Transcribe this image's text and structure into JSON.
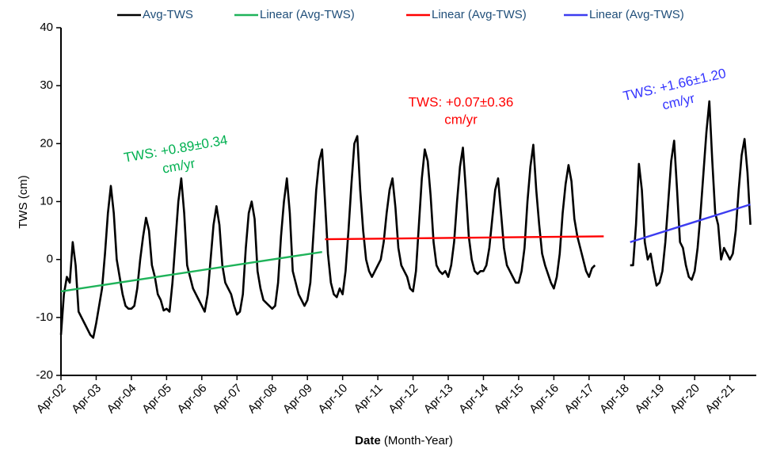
{
  "chart_data": {
    "type": "line",
    "y_label": "TWS (cm)",
    "x_label": [
      "Date",
      "(Month-Year)"
    ],
    "xlim": [
      "2002-04",
      "2022-01"
    ],
    "ylim": [
      -20,
      40
    ],
    "yticks": [
      -20,
      -10,
      0,
      10,
      20,
      30,
      40
    ],
    "xticks": [
      {
        "value": "2002-04",
        "label": "Apr-02"
      },
      {
        "value": "2003-04",
        "label": "Apr-03"
      },
      {
        "value": "2004-04",
        "label": "Apr-04"
      },
      {
        "value": "2005-04",
        "label": "Apr-05"
      },
      {
        "value": "2006-04",
        "label": "Apr-06"
      },
      {
        "value": "2007-04",
        "label": "Apr-07"
      },
      {
        "value": "2008-04",
        "label": "Apr-08"
      },
      {
        "value": "2009-04",
        "label": "Apr-09"
      },
      {
        "value": "2010-04",
        "label": "Apr-10"
      },
      {
        "value": "2011-04",
        "label": "Apr-11"
      },
      {
        "value": "2012-04",
        "label": "Apr-12"
      },
      {
        "value": "2013-04",
        "label": "Apr-13"
      },
      {
        "value": "2014-04",
        "label": "Apr-14"
      },
      {
        "value": "2015-04",
        "label": "Apr-15"
      },
      {
        "value": "2016-04",
        "label": "Apr-16"
      },
      {
        "value": "2017-04",
        "label": "Apr-17"
      },
      {
        "value": "2018-04",
        "label": "Apr-18"
      },
      {
        "value": "2019-04",
        "label": "Apr-19"
      },
      {
        "value": "2020-04",
        "label": "Apr-20"
      },
      {
        "value": "2021-04",
        "label": "Apr-21"
      }
    ],
    "series": [
      {
        "name": "Avg-TWS",
        "color": "#000000",
        "x": [
          "2002-04",
          "2002-05",
          "2002-06",
          "2002-07",
          "2002-08",
          "2002-09",
          "2002-10",
          "2002-11",
          "2002-12",
          "2003-01",
          "2003-02",
          "2003-03",
          "2003-04",
          "2003-05",
          "2003-06",
          "2003-07",
          "2003-08",
          "2003-09",
          "2003-10",
          "2003-11",
          "2003-12",
          "2004-01",
          "2004-02",
          "2004-03",
          "2004-04",
          "2004-05",
          "2004-06",
          "2004-07",
          "2004-08",
          "2004-09",
          "2004-10",
          "2004-11",
          "2004-12",
          "2005-01",
          "2005-02",
          "2005-03",
          "2005-04",
          "2005-05",
          "2005-06",
          "2005-07",
          "2005-08",
          "2005-09",
          "2005-10",
          "2005-11",
          "2005-12",
          "2006-01",
          "2006-02",
          "2006-03",
          "2006-04",
          "2006-05",
          "2006-06",
          "2006-07",
          "2006-08",
          "2006-09",
          "2006-10",
          "2006-11",
          "2006-12",
          "2007-01",
          "2007-02",
          "2007-03",
          "2007-04",
          "2007-05",
          "2007-06",
          "2007-07",
          "2007-08",
          "2007-09",
          "2007-10",
          "2007-11",
          "2007-12",
          "2008-01",
          "2008-02",
          "2008-03",
          "2008-04",
          "2008-05",
          "2008-06",
          "2008-07",
          "2008-08",
          "2008-09",
          "2008-10",
          "2008-11",
          "2008-12",
          "2009-01",
          "2009-02",
          "2009-03",
          "2009-04",
          "2009-05",
          "2009-06",
          "2009-07",
          "2009-08",
          "2009-09",
          "2009-10",
          "2009-11",
          "2009-12",
          "2010-01",
          "2010-02",
          "2010-03",
          "2010-04",
          "2010-05",
          "2010-06",
          "2010-07",
          "2010-08",
          "2010-09",
          "2010-10",
          "2010-11",
          "2010-12",
          "2011-01",
          "2011-02",
          "2011-03",
          "2011-04",
          "2011-05",
          "2011-06",
          "2011-07",
          "2011-08",
          "2011-09",
          "2011-10",
          "2011-11",
          "2011-12",
          "2012-01",
          "2012-02",
          "2012-03",
          "2012-04",
          "2012-05",
          "2012-06",
          "2012-07",
          "2012-08",
          "2012-09",
          "2012-10",
          "2012-11",
          "2012-12",
          "2013-01",
          "2013-02",
          "2013-03",
          "2013-04",
          "2013-05",
          "2013-06",
          "2013-07",
          "2013-08",
          "2013-09",
          "2013-10",
          "2013-11",
          "2013-12",
          "2014-01",
          "2014-02",
          "2014-03",
          "2014-04",
          "2014-05",
          "2014-06",
          "2014-07",
          "2014-08",
          "2014-09",
          "2014-10",
          "2014-11",
          "2014-12",
          "2015-01",
          "2015-02",
          "2015-03",
          "2015-04",
          "2015-05",
          "2015-06",
          "2015-07",
          "2015-08",
          "2015-09",
          "2015-10",
          "2015-11",
          "2015-12",
          "2016-01",
          "2016-02",
          "2016-03",
          "2016-04",
          "2016-05",
          "2016-06",
          "2016-07",
          "2016-08",
          "2016-09",
          "2016-10",
          "2016-11",
          "2016-12",
          "2017-01",
          "2017-02",
          "2017-03",
          "2017-04",
          "2017-05",
          "2017-06",
          "2017-07",
          "2017-08",
          "2017-09",
          "2017-10",
          "2017-11",
          "2017-12",
          "2018-01",
          "2018-02",
          "2018-03",
          "2018-04",
          "2018-05",
          "2018-06",
          "2018-07",
          "2018-08",
          "2018-09",
          "2018-10",
          "2018-11",
          "2018-12",
          "2019-01",
          "2019-02",
          "2019-03",
          "2019-04",
          "2019-05",
          "2019-06",
          "2019-07",
          "2019-08",
          "2019-09",
          "2019-10",
          "2019-11",
          "2019-12",
          "2020-01",
          "2020-02",
          "2020-03",
          "2020-04",
          "2020-05",
          "2020-06",
          "2020-07",
          "2020-08",
          "2020-09",
          "2020-10",
          "2020-11",
          "2020-12",
          "2021-01",
          "2021-02",
          "2021-03",
          "2021-04",
          "2021-05",
          "2021-06",
          "2021-07",
          "2021-08",
          "2021-09",
          "2021-10",
          "2021-11"
        ],
        "values": [
          -13,
          -6,
          -3,
          -4,
          3,
          -1,
          -9,
          -10,
          -11,
          -12,
          -13,
          -13.5,
          -11,
          -8,
          -5,
          1,
          8,
          12.7,
          8,
          0,
          -3,
          -6,
          -8,
          -8.5,
          -8.5,
          -8,
          -5,
          0,
          4,
          7.2,
          5,
          -1,
          -3,
          -6,
          -7,
          -8.8,
          -8.5,
          -9,
          -4,
          3,
          10,
          14,
          8,
          -1,
          -3,
          -5,
          -6,
          -7,
          -8,
          -9,
          -6,
          0,
          6,
          9.2,
          6,
          -1,
          -4,
          -5,
          -6,
          -8,
          -9.5,
          -9,
          -6,
          2,
          8,
          10,
          7,
          -2,
          -5,
          -7,
          -7.5,
          -8,
          -8.5,
          -8,
          -4,
          4,
          10,
          14,
          8,
          -2,
          -4,
          -6,
          -7,
          -8,
          -7,
          -4,
          4,
          12,
          17,
          19,
          10,
          1,
          -4,
          -6,
          -6.5,
          -5,
          -6,
          -2,
          5,
          13,
          20,
          21.3,
          12,
          5,
          0,
          -2,
          -3,
          -2,
          -1,
          0,
          3,
          8,
          12,
          14,
          9,
          2,
          -1,
          -2,
          -3,
          -5,
          -5.5,
          -2,
          6,
          14,
          19,
          17,
          11,
          3,
          -1,
          -2,
          -2.5,
          -2,
          -3,
          -1,
          3,
          10,
          16,
          19.3,
          12,
          4,
          0,
          -2,
          -2.5,
          -2,
          -2,
          -1,
          2,
          7,
          12,
          14,
          8,
          2,
          -1,
          -2,
          -3,
          -4,
          -4,
          -2,
          2,
          10,
          16,
          19.8,
          12,
          6,
          1,
          -1,
          -2.5,
          -4,
          -5,
          -3,
          1,
          8,
          13,
          16.3,
          13.5,
          7,
          4,
          2,
          0,
          -2,
          -3,
          -1.5,
          -1,
          null,
          null,
          null,
          null,
          null,
          null,
          null,
          null,
          null,
          null,
          null,
          -1,
          -1,
          6,
          16.5,
          12,
          3,
          0,
          1,
          -2,
          -4.5,
          -4,
          -2,
          3,
          10,
          17,
          20.5,
          12,
          3,
          2,
          -1,
          -3,
          -3.5,
          -2,
          2,
          8,
          15,
          22,
          27.3,
          17,
          8,
          6,
          0,
          2,
          1,
          0,
          1,
          5,
          12,
          18,
          20.8,
          15,
          6
        ]
      },
      {
        "name": "Linear (Avg-TWS)",
        "color": "#1fb35a",
        "x": [
          "2002-04",
          "2009-09"
        ],
        "values": [
          -5.5,
          1.3
        ]
      },
      {
        "name": "Linear (Avg-TWS)",
        "color": "#ff0000",
        "x": [
          "2009-10",
          "2017-09"
        ],
        "values": [
          3.5,
          4
        ]
      },
      {
        "name": "Linear (Avg-TWS)",
        "color": "#3c3cf0",
        "x": [
          "2018-06",
          "2021-11"
        ],
        "values": [
          3,
          9.5
        ]
      }
    ],
    "annotations": [
      {
        "lines": [
          "TWS: +0.89±0.34",
          "cm/yr"
        ],
        "color": "#00b050"
      },
      {
        "lines": [
          "TWS: +0.07±0.36",
          "cm/yr"
        ],
        "color": "#ff0000"
      },
      {
        "lines": [
          "TWS: +1.66±1.20",
          "cm/yr"
        ],
        "color": "#3333ff"
      }
    ]
  }
}
